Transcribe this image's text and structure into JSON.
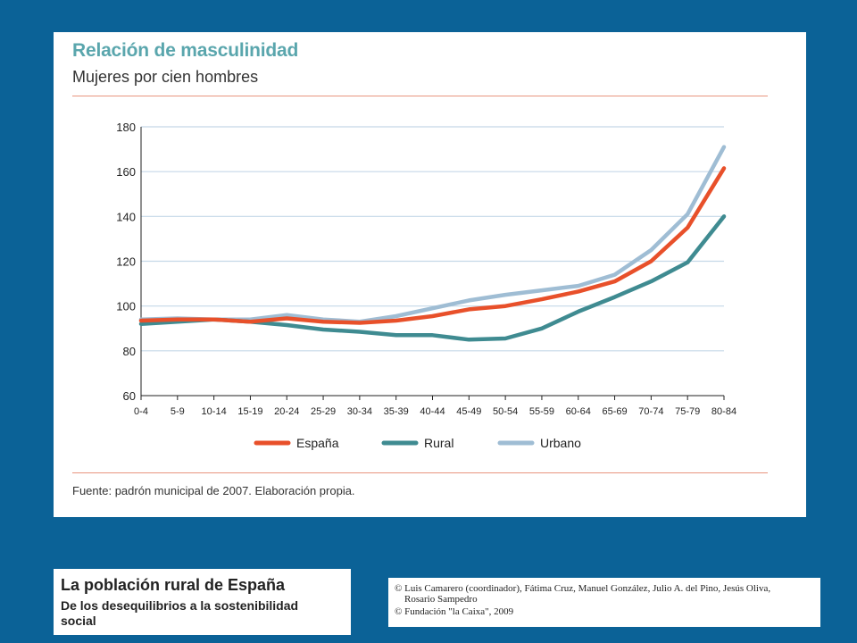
{
  "card": {
    "title": "Relación de masculinidad",
    "subtitle": "Mujeres por cien hombres",
    "source": "Fuente: padrón municipal de 2007. Elaboración propia."
  },
  "book": {
    "title": "La población rural de España",
    "subtitle": "De los desequilibrios a la sostenibilidad social"
  },
  "credits": {
    "line1": "© Luis Camarero (coordinador), Fátima Cruz, Manuel González, Julio A. del Pino, Jesús Oliva,",
    "line2": "Rosario Sampedro",
    "line3": "© Fundación \"la Caixa\", 2009"
  },
  "colors": {
    "background": "#0b6297",
    "title": "#5aa6ad",
    "espana": "#e8502a",
    "rural": "#3f8b91",
    "urbano": "#9fbdd4",
    "grid": "#c5d8e8",
    "rule": "#e8957f"
  },
  "chart_data": {
    "type": "line",
    "title": "Relación de masculinidad",
    "subtitle": "Mujeres por cien hombres",
    "xlabel": "",
    "ylabel": "",
    "ylim": [
      60,
      180
    ],
    "yticks": [
      60,
      80,
      100,
      120,
      140,
      160,
      180
    ],
    "grid": "horizontal",
    "legend": "bottom",
    "categories": [
      "0-4",
      "5-9",
      "10-14",
      "15-19",
      "20-24",
      "25-29",
      "30-34",
      "35-39",
      "40-44",
      "45-49",
      "50-54",
      "55-59",
      "60-64",
      "65-69",
      "70-74",
      "75-79",
      "80-84"
    ],
    "series": [
      {
        "name": "España",
        "color": "#e8502a",
        "values": [
          93.5,
          94,
          94,
          93,
          94.5,
          93,
          92.5,
          93.5,
          95.5,
          98.5,
          100,
          103,
          106.5,
          111,
          120,
          135,
          161.5
        ]
      },
      {
        "name": "Rural",
        "color": "#3f8b91",
        "values": [
          92,
          93,
          94,
          93,
          91.5,
          89.5,
          88.5,
          87,
          87,
          85,
          85.5,
          90,
          97.5,
          104,
          111,
          119.5,
          140
        ]
      },
      {
        "name": "Urbano",
        "color": "#9fbdd4",
        "values": [
          94,
          94.5,
          94,
          94,
          96,
          94,
          93,
          95.5,
          99,
          102.5,
          105,
          107,
          109,
          114,
          125,
          141,
          171
        ]
      }
    ]
  }
}
